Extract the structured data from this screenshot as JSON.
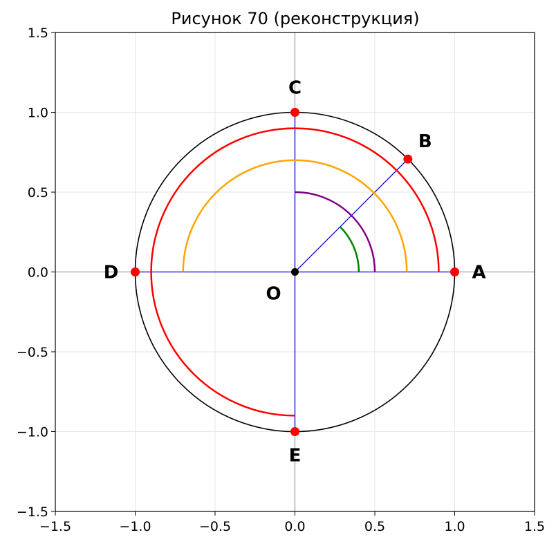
{
  "title": "Рисунок 70 (реконструкция)",
  "chart_data": {
    "type": "diagram",
    "xlim": [
      -1.5,
      1.5
    ],
    "ylim": [
      -1.5,
      1.5
    ],
    "grid": true,
    "xticks": [
      "−1.5",
      "−1.0",
      "−0.5",
      "0.0",
      "0.5",
      "1.0",
      "1.5"
    ],
    "yticks": [
      "−1.5",
      "−1.0",
      "−0.5",
      "0.0",
      "0.5",
      "1.0",
      "1.5"
    ],
    "tick_values": [
      -1.5,
      -1.0,
      -0.5,
      0.0,
      0.5,
      1.0,
      1.5
    ],
    "circle": {
      "center": [
        0,
        0
      ],
      "radius": 1.0,
      "color": "#000000"
    },
    "arcs": [
      {
        "name": "red-arc",
        "radius": 0.9,
        "start_deg": 0,
        "end_deg": 270,
        "color": "#ff0000"
      },
      {
        "name": "orange-arc",
        "radius": 0.7,
        "start_deg": 0,
        "end_deg": 180,
        "color": "#ffa500"
      },
      {
        "name": "purple-arc",
        "radius": 0.5,
        "start_deg": 0,
        "end_deg": 90,
        "color": "#800080"
      },
      {
        "name": "green-arc",
        "radius": 0.4,
        "start_deg": 0,
        "end_deg": 45,
        "color": "#008000"
      }
    ],
    "segments": [
      {
        "from": [
          0,
          0
        ],
        "to": [
          1,
          0
        ]
      },
      {
        "from": [
          0,
          0
        ],
        "to": [
          0.7071,
          0.7071
        ]
      },
      {
        "from": [
          0,
          0
        ],
        "to": [
          0,
          1
        ]
      },
      {
        "from": [
          0,
          0
        ],
        "to": [
          -1,
          0
        ]
      },
      {
        "from": [
          0,
          0
        ],
        "to": [
          0,
          -1
        ]
      }
    ],
    "segment_color": "#0000cc",
    "points": [
      {
        "label": "A",
        "x": 1.0,
        "y": 0.0
      },
      {
        "label": "B",
        "x": 0.7071,
        "y": 0.7071
      },
      {
        "label": "C",
        "x": 0.0,
        "y": 1.0
      },
      {
        "label": "D",
        "x": -1.0,
        "y": 0.0
      },
      {
        "label": "E",
        "x": 0.0,
        "y": -1.0
      }
    ],
    "point_color": "#ff0000",
    "origin": {
      "label": "O",
      "x": 0,
      "y": 0,
      "color": "#000000"
    }
  }
}
